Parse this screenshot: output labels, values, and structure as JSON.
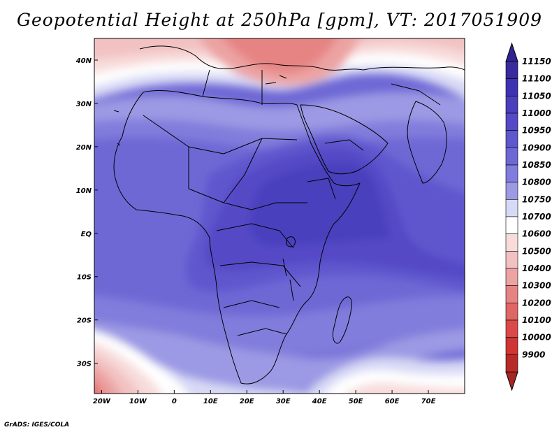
{
  "title": "Geopotential Height at 250hPa [gpm], VT: 2017051909",
  "credit": "GrADS: IGES/COLA",
  "map": {
    "lon_range": [
      -22,
      80
    ],
    "lat_range": [
      -37,
      45
    ],
    "lon_ticks": [
      {
        "value": -20,
        "label": "20W"
      },
      {
        "value": -10,
        "label": "10W"
      },
      {
        "value": 0,
        "label": "0"
      },
      {
        "value": 10,
        "label": "10E"
      },
      {
        "value": 20,
        "label": "20E"
      },
      {
        "value": 30,
        "label": "30E"
      },
      {
        "value": 40,
        "label": "40E"
      },
      {
        "value": 50,
        "label": "50E"
      },
      {
        "value": 60,
        "label": "60E"
      },
      {
        "value": 70,
        "label": "70E"
      }
    ],
    "lat_ticks": [
      {
        "value": 40,
        "label": "40N"
      },
      {
        "value": 30,
        "label": "30N"
      },
      {
        "value": 20,
        "label": "20N"
      },
      {
        "value": 10,
        "label": "10N"
      },
      {
        "value": 0,
        "label": "EQ"
      },
      {
        "value": -10,
        "label": "10S"
      },
      {
        "value": -20,
        "label": "20S"
      },
      {
        "value": -30,
        "label": "30S"
      }
    ]
  },
  "colorbar": {
    "levels": [
      {
        "label": "11150",
        "color": "#3a2a9e"
      },
      {
        "label": "11100",
        "color": "#3f32b2"
      },
      {
        "label": "11050",
        "color": "#4a3fbd"
      },
      {
        "label": "11000",
        "color": "#5449c6"
      },
      {
        "label": "10950",
        "color": "#5f57cd"
      },
      {
        "label": "10900",
        "color": "#6e68d5"
      },
      {
        "label": "10850",
        "color": "#817ddc"
      },
      {
        "label": "10800",
        "color": "#9c9ae4"
      },
      {
        "label": "10750",
        "color": "#d8d9f5"
      },
      {
        "label": "10700",
        "color": "#ffffff"
      },
      {
        "label": "10600",
        "color": "#f8dcdc"
      },
      {
        "label": "10500",
        "color": "#f2c2c2"
      },
      {
        "label": "10400",
        "color": "#eca3a3"
      },
      {
        "label": "10300",
        "color": "#e68484"
      },
      {
        "label": "10200",
        "color": "#e06565"
      },
      {
        "label": "10100",
        "color": "#db4a4a"
      },
      {
        "label": "10000",
        "color": "#cf3535"
      },
      {
        "label": "9900",
        "color": "#b82a2a"
      }
    ],
    "top_arrow_color": "#2f2490",
    "bottom_arrow_color": "#a82424"
  }
}
